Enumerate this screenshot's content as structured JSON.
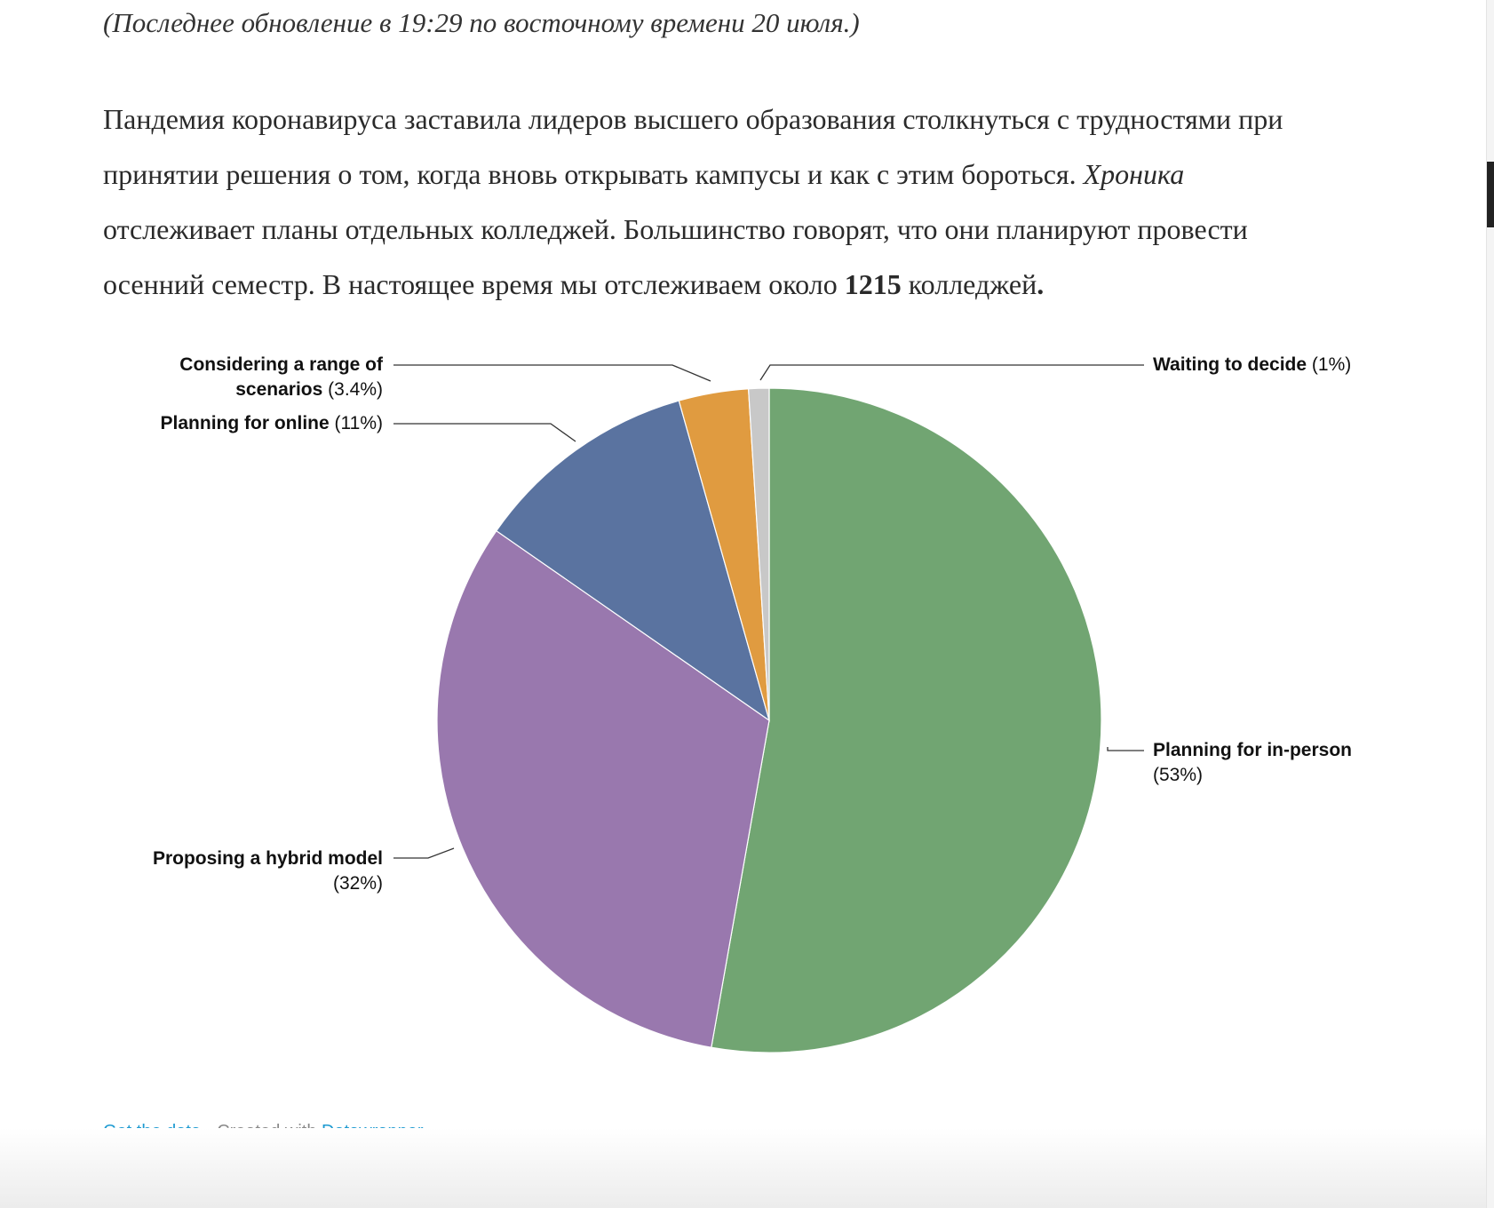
{
  "update_note": "(Последнее обновление в 19:29 по восточному времени 20 июля.)",
  "intro": {
    "line1": "Пандемия коронавируса заставила лидеров высшего образования столкнуться с трудностями при",
    "line2_a": "принятии решения о том, когда вновь открывать кампусы и как с этим бороться. ",
    "line2_em": "Хроника",
    "line3": "отслеживает планы отдельных колледжей. Большинство говорят, что они планируют провести",
    "line4_a": "осенний семестр. В настоящее время мы отслеживаем около ",
    "line4_bold": "1215",
    "line4_b": " колледжей",
    "line4_end": "."
  },
  "chart_data": {
    "type": "pie",
    "title": "",
    "start": "top",
    "direction": "clockwise",
    "slices": [
      {
        "name": "Planning for in-person",
        "value": 53,
        "pct_label": "(53%)",
        "color": "#71a572"
      },
      {
        "name": "Proposing a hybrid model",
        "value": 32,
        "pct_label": "(32%)",
        "color": "#9978ae"
      },
      {
        "name": "Planning for online",
        "value": 11,
        "pct_label": "(11%)",
        "color": "#5a73a0"
      },
      {
        "name": "Considering a range of scenarios",
        "name_line1": "Considering a range of",
        "name_line2": "scenarios",
        "value": 3.4,
        "pct_label": "(3.4%)",
        "color": "#e09b40"
      },
      {
        "name": "Waiting to decide",
        "value": 1,
        "pct_label": "(1%)",
        "color": "#c8c8c8"
      }
    ]
  },
  "footer": {
    "get_data": "Get the data",
    "sep": " • Created with ",
    "datawrapper": "Datawrapper"
  }
}
